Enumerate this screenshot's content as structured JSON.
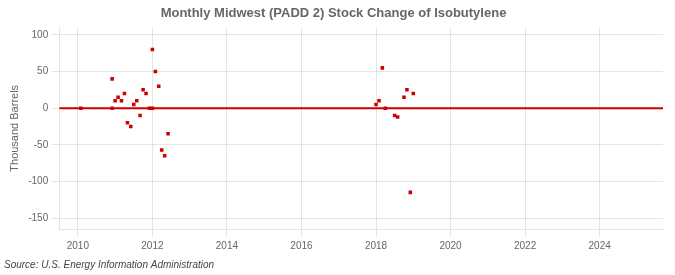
{
  "chart_data": {
    "type": "scatter",
    "title": "Monthly Midwest (PADD 2) Stock Change of Isobutylene",
    "ylabel": "Thousand Barrels",
    "annotations": [
      "Source: U.S. Energy Information Administration"
    ],
    "color": "#cc0000",
    "marker": "square",
    "hline": {
      "y": 0,
      "color": "#cc0000"
    },
    "grid": true,
    "xlim": [
      2009.5,
      2025.7
    ],
    "ylim": [
      -165,
      110
    ],
    "xticks": [
      2010,
      2012,
      2014,
      2016,
      2018,
      2020,
      2022,
      2024
    ],
    "yticks": [
      -150,
      -100,
      -50,
      0,
      50,
      100
    ],
    "x": [
      2010.08,
      2010.92,
      2010.92,
      2011.0,
      2011.08,
      2011.17,
      2011.25,
      2011.33,
      2011.42,
      2011.5,
      2011.58,
      2011.67,
      2011.75,
      2011.83,
      2011.92,
      2012.0,
      2012.0,
      2012.08,
      2012.17,
      2012.25,
      2012.33,
      2012.42,
      2018.0,
      2018.08,
      2018.17,
      2018.25,
      2018.5,
      2018.58,
      2018.75,
      2018.83,
      2018.92,
      2019.0
    ],
    "values": [
      0,
      0,
      40,
      10,
      15,
      10,
      20,
      -20,
      -25,
      5,
      10,
      -10,
      25,
      20,
      0,
      80,
      0,
      50,
      30,
      -57,
      -65,
      -35,
      5,
      10,
      55,
      0,
      -10,
      -12,
      15,
      25,
      -115,
      20
    ]
  }
}
